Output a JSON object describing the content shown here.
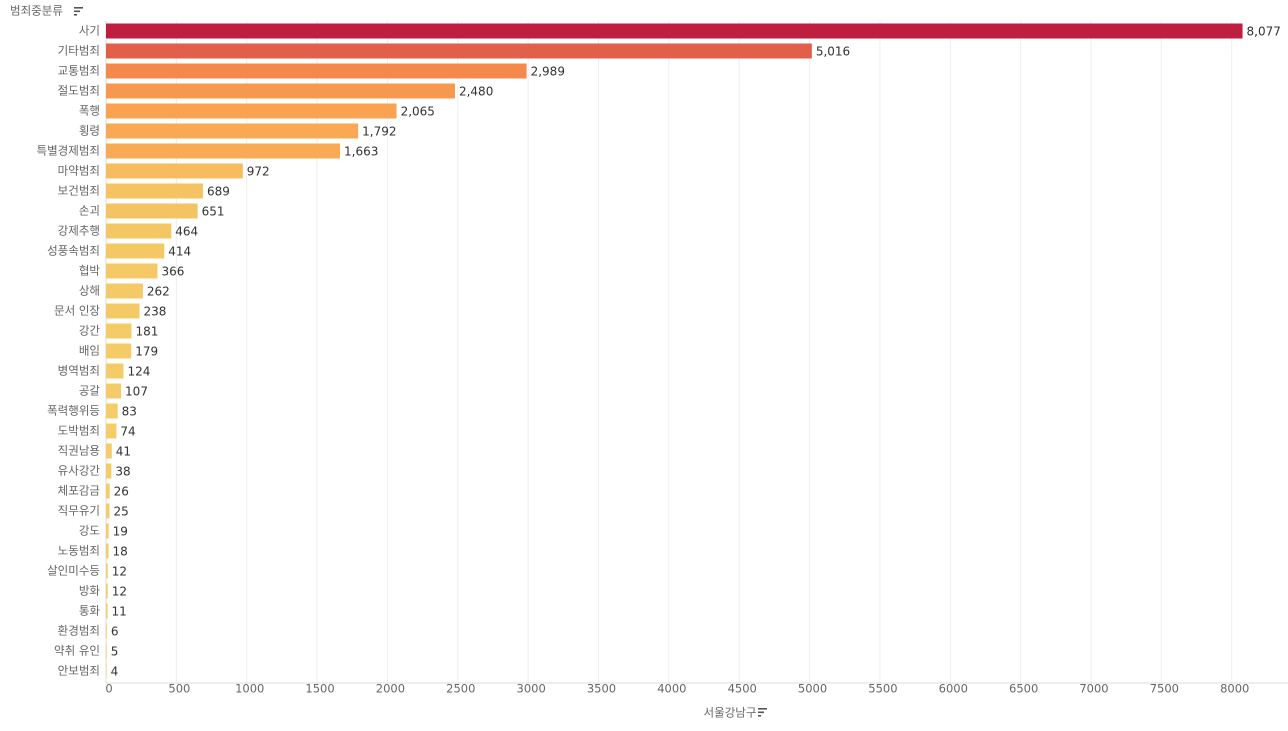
{
  "chart_data": {
    "type": "bar",
    "orientation": "horizontal",
    "y_title": "범죄중분류",
    "x_title": "서울강남구",
    "categories": [
      "사기",
      "기타범죄",
      "교통범죄",
      "절도범죄",
      "폭행",
      "횡령",
      "특별경제범죄",
      "마약범죄",
      "보건범죄",
      "손괴",
      "강제추행",
      "성풍속범죄",
      "협박",
      "상해",
      "문서 인장",
      "강간",
      "배임",
      "병역범죄",
      "공갈",
      "폭력행위등",
      "도박범죄",
      "직권남용",
      "유사강간",
      "체포감금",
      "직무유기",
      "강도",
      "노동범죄",
      "살인미수등",
      "방화",
      "통화",
      "환경범죄",
      "약취 유인",
      "안보범죄"
    ],
    "values": [
      8077,
      5016,
      2989,
      2480,
      2065,
      1792,
      1663,
      972,
      689,
      651,
      464,
      414,
      366,
      262,
      238,
      181,
      179,
      124,
      107,
      83,
      74,
      41,
      38,
      26,
      25,
      19,
      18,
      12,
      12,
      11,
      6,
      5,
      4
    ],
    "value_labels": [
      "8,077",
      "5,016",
      "2,989",
      "2,480",
      "2,065",
      "1,792",
      "1,663",
      "972",
      "689",
      "651",
      "464",
      "414",
      "366",
      "262",
      "238",
      "181",
      "179",
      "124",
      "107",
      "83",
      "74",
      "41",
      "38",
      "26",
      "25",
      "19",
      "18",
      "12",
      "12",
      "11",
      "6",
      "5",
      "4"
    ],
    "colors": [
      "#be1e3f",
      "#e2604a",
      "#f5894c",
      "#f8984f",
      "#f9a251",
      "#f9a853",
      "#f9aa54",
      "#f6bc5d",
      "#f5c362",
      "#f5c462",
      "#f4c765",
      "#f4c865",
      "#f4c966",
      "#f4ca67",
      "#f4ca67",
      "#f4cb67",
      "#f4cb67",
      "#f4cb67",
      "#f4cb67",
      "#f4cc68",
      "#f4cc68",
      "#f4cc68",
      "#f4cc68",
      "#f4cc68",
      "#f4cc68",
      "#f4cc68",
      "#f4cc68",
      "#f4cc68",
      "#f4cc68",
      "#f4cc68",
      "#f4cc68",
      "#f4cc68",
      "#f4cc68"
    ],
    "xlim": [
      0,
      8400
    ],
    "xticks": [
      0,
      500,
      1000,
      1500,
      2000,
      2500,
      3000,
      3500,
      4000,
      4500,
      5000,
      5500,
      6000,
      6500,
      7000,
      7500,
      8000
    ],
    "grid": true
  }
}
